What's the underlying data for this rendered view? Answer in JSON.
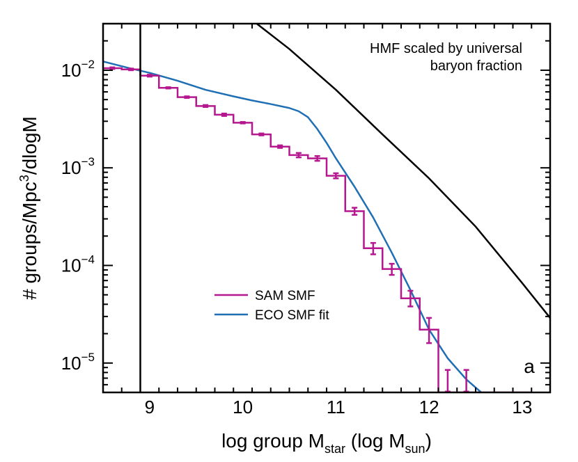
{
  "chart_data": {
    "type": "line",
    "xlabel_main": "log group M",
    "xlabel_sub1": "star",
    "xlabel_mid": " (log M",
    "xlabel_sub2": "sun",
    "xlabel_end": ")",
    "ylabel_main": "# groups/Mpc",
    "ylabel_sup": "3",
    "ylabel_end": "/dlogM",
    "xlim": [
      8.5,
      13.3
    ],
    "ylim": [
      5e-06,
      0.03
    ],
    "yscale": "log",
    "x_ticks": [
      {
        "value": 9,
        "label": "9"
      },
      {
        "value": 10,
        "label": "10"
      },
      {
        "value": 11,
        "label": "11"
      },
      {
        "value": 12,
        "label": "12"
      },
      {
        "value": 13,
        "label": "13"
      }
    ],
    "y_ticks": [
      {
        "value": 0.01,
        "base": "10",
        "exp": "−2"
      },
      {
        "value": 0.001,
        "base": "10",
        "exp": "−3"
      },
      {
        "value": 0.0001,
        "base": "10",
        "exp": "−4"
      },
      {
        "value": 1e-05,
        "base": "10",
        "exp": "−5"
      }
    ],
    "annotation_line1": "HMF scaled by universal",
    "annotation_line2": "baryon fraction",
    "panel_label": "a",
    "vertical_line_x": 8.9,
    "legend": [
      {
        "label": "SAM SMF",
        "color": "#B5178F"
      },
      {
        "label": "ECO SMF fit",
        "color": "#1F6FB5"
      }
    ],
    "series": [
      {
        "name": "SAM SMF",
        "color": "#B5178F",
        "style": "step",
        "bin_width": 0.2,
        "x": [
          8.6,
          8.8,
          9.0,
          9.2,
          9.4,
          9.6,
          9.8,
          10.0,
          10.2,
          10.4,
          10.6,
          10.8,
          11.0,
          11.2,
          11.4,
          11.6,
          11.8,
          12.0,
          12.2,
          12.4,
          12.6,
          12.8,
          13.0
        ],
        "y": [
          0.0105,
          0.0102,
          0.0088,
          0.0066,
          0.0053,
          0.0043,
          0.0035,
          0.0029,
          0.0022,
          0.00165,
          0.00135,
          0.00125,
          0.00083,
          0.00036,
          0.00015,
          9.2e-05,
          4.6e-05,
          2.2e-05,
          5e-06,
          5e-06,
          5e-06,
          5e-06,
          5e-06
        ],
        "err_low": [
          0.0103,
          0.01,
          0.0086,
          0.0065,
          0.0052,
          0.0042,
          0.0034,
          0.00285,
          0.00215,
          0.0016,
          0.00128,
          0.00118,
          0.00078,
          0.00033,
          0.00013,
          8e-05,
          3.8e-05,
          1.6e-05,
          5.1e-06,
          5.1e-06,
          5.1e-06,
          5.1e-06,
          5.1e-06
        ],
        "err_high": [
          0.0107,
          0.0104,
          0.009,
          0.0067,
          0.0054,
          0.0044,
          0.0036,
          0.00295,
          0.00225,
          0.0017,
          0.00142,
          0.00132,
          0.00088,
          0.00039,
          0.00017,
          0.000104,
          5.5e-05,
          2.9e-05,
          8.5e-06,
          8.5e-06,
          5.1e-06,
          5.1e-06,
          5.1e-06
        ],
        "show_errbar": [
          true,
          true,
          true,
          true,
          true,
          true,
          true,
          true,
          true,
          true,
          true,
          true,
          true,
          true,
          true,
          true,
          true,
          true,
          true,
          true,
          false,
          false,
          false
        ]
      },
      {
        "name": "ECO SMF fit",
        "color": "#1F6FB5",
        "style": "line",
        "x": [
          8.5,
          8.8,
          9.0,
          9.3,
          9.6,
          9.9,
          10.1,
          10.3,
          10.5,
          10.6,
          10.7,
          10.8,
          10.9,
          11.0,
          11.2,
          11.4,
          11.6,
          11.8,
          12.0,
          12.2,
          12.4,
          12.56
        ],
        "y": [
          0.0123,
          0.0104,
          0.0094,
          0.0078,
          0.0063,
          0.0054,
          0.0049,
          0.0045,
          0.0041,
          0.0038,
          0.0033,
          0.0025,
          0.0018,
          0.00125,
          0.00064,
          0.00031,
          0.000135,
          5.6e-05,
          2.2e-05,
          1.12e-05,
          6.8e-06,
          5e-06
        ]
      },
      {
        "name": "HMF scaled by universal baryon fraction",
        "color": "#000000",
        "style": "line",
        "x": [
          10.15,
          10.5,
          11.0,
          11.5,
          12.0,
          12.5,
          13.0,
          13.3
        ],
        "y": [
          0.03,
          0.0165,
          0.0063,
          0.0022,
          0.00078,
          0.00025,
          6.6e-05,
          2.9e-05
        ]
      }
    ]
  }
}
